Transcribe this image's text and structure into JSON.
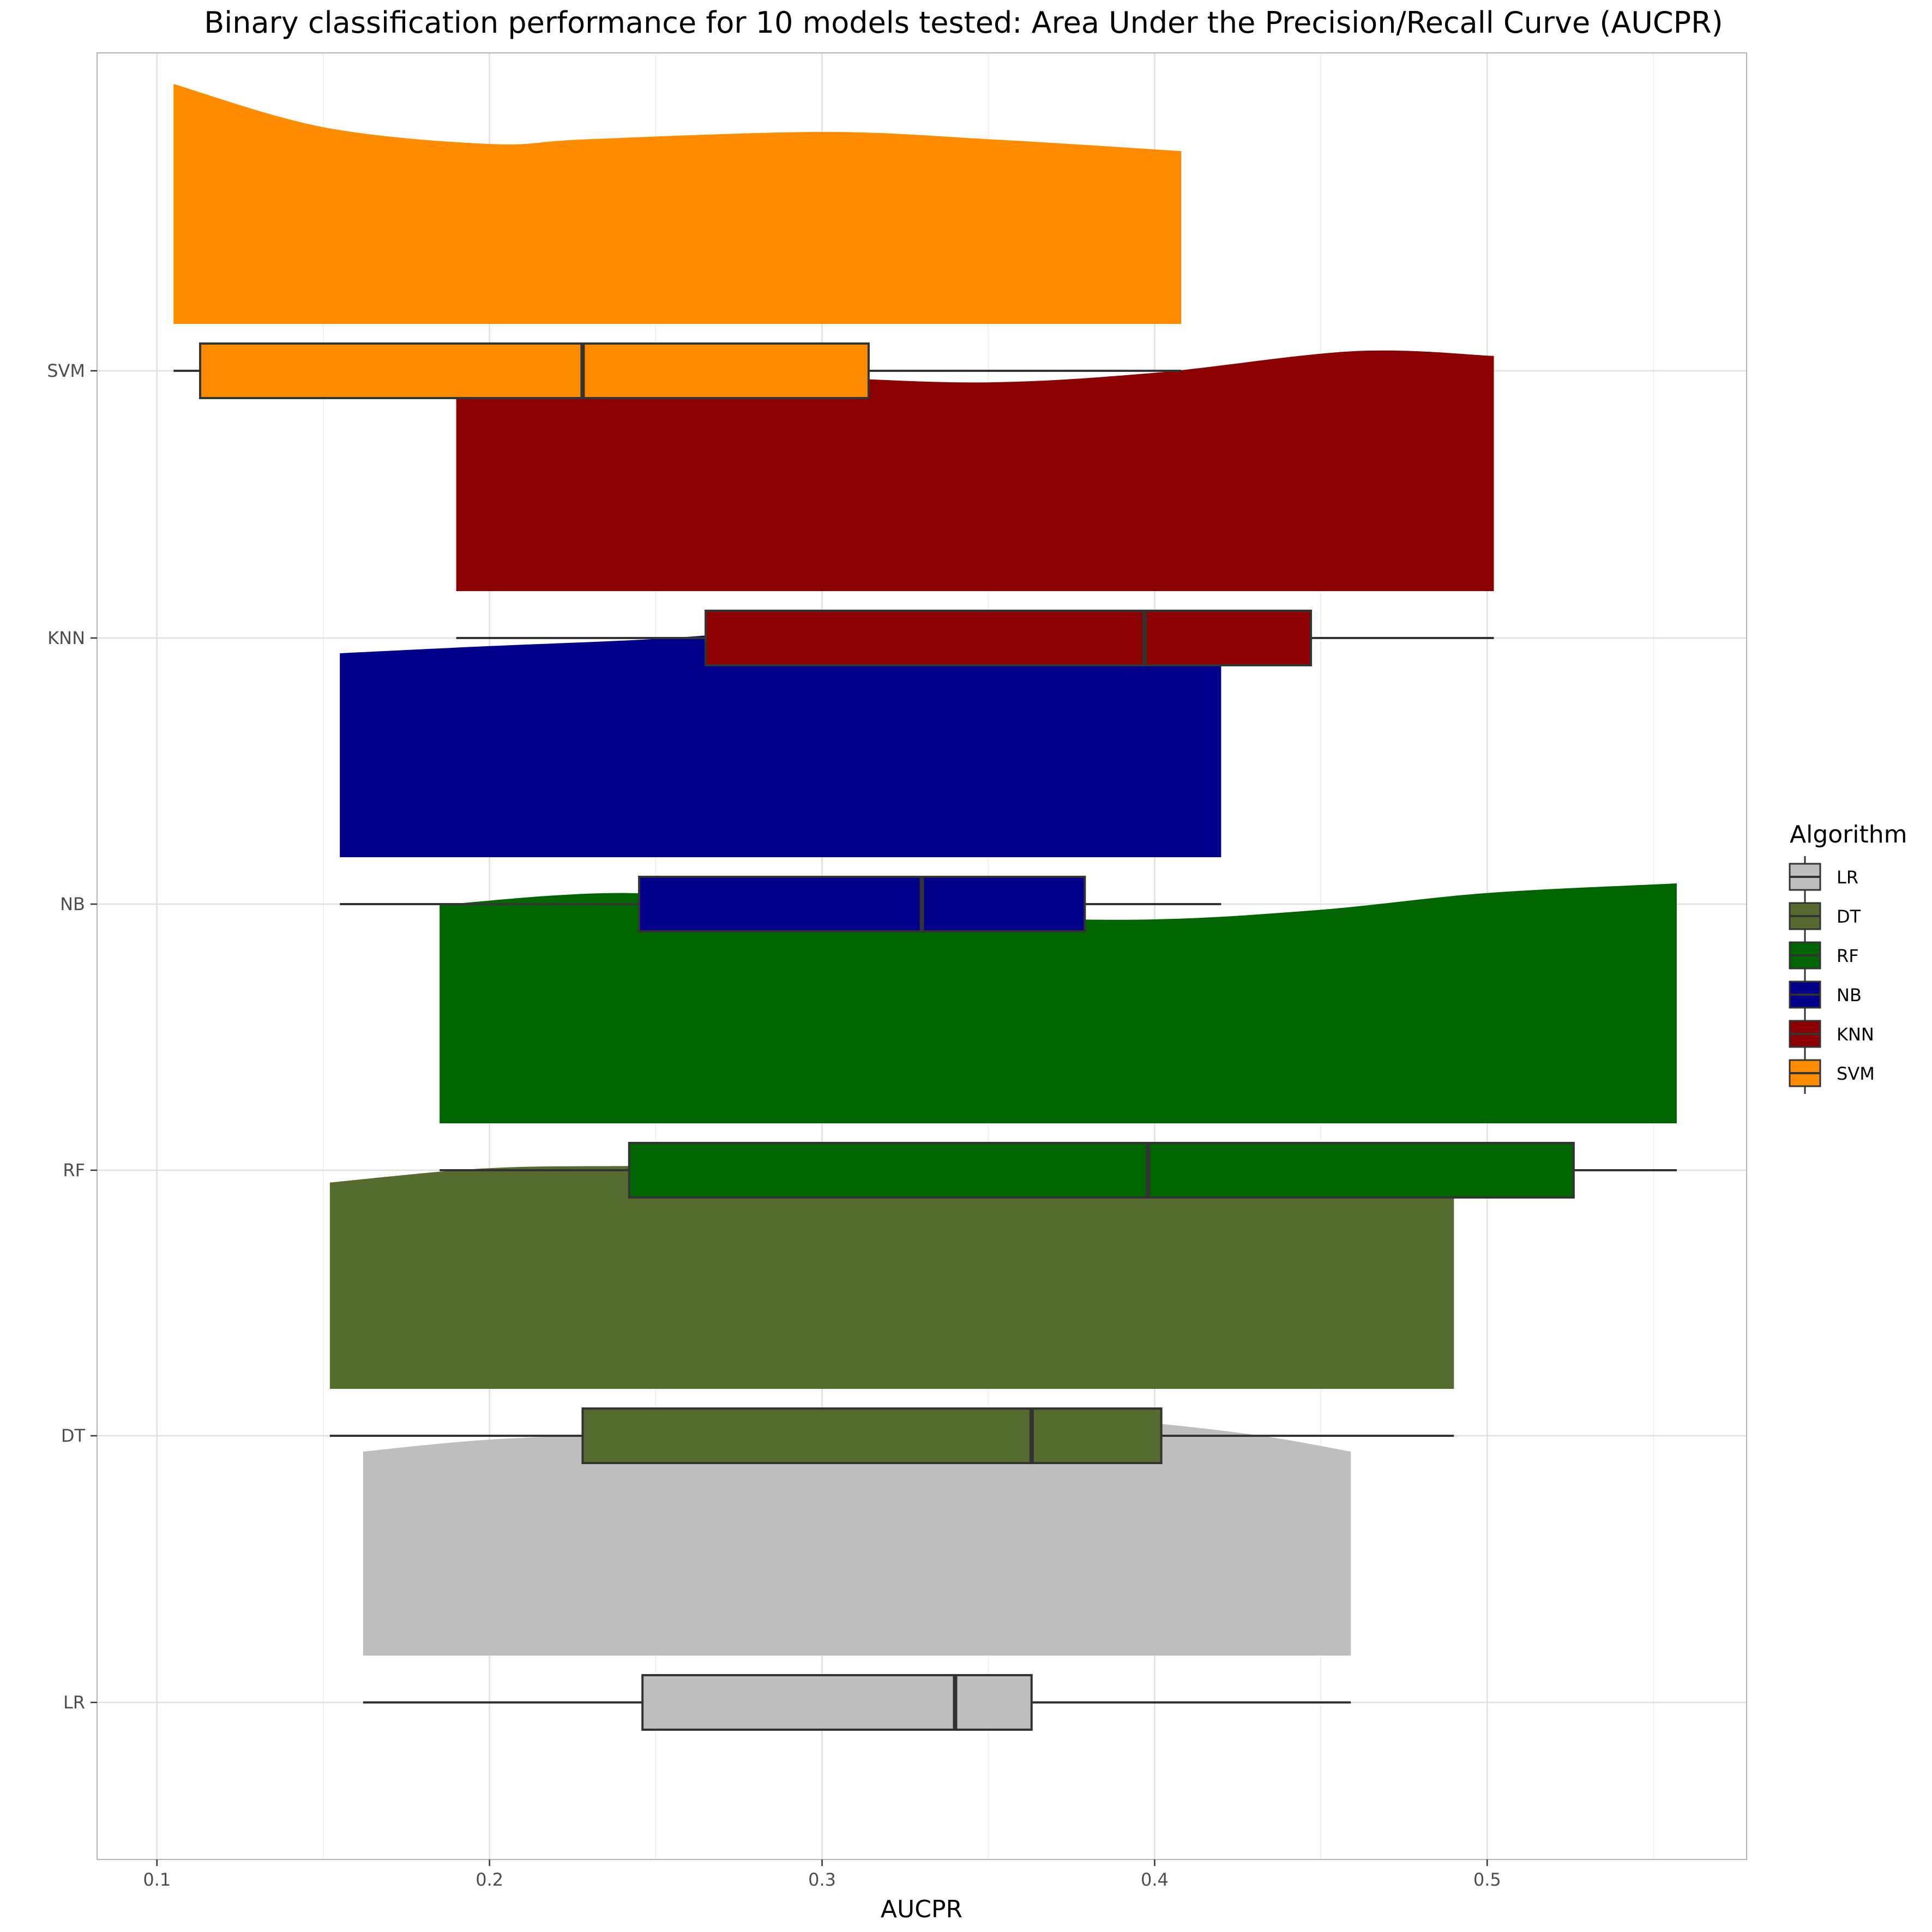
{
  "chart_data": {
    "type": "raincloud",
    "title": "Binary classification performance for 10 models tested: Area Under the Precision/Recall Curve (AUCPR)",
    "xlabel": "AUCPR",
    "ylabel": "",
    "xlim": [
      0.082,
      0.578
    ],
    "x_ticks": [
      0.1,
      0.2,
      0.3,
      0.4,
      0.5
    ],
    "x_tick_labels": [
      "0.1",
      "0.2",
      "0.3",
      "0.4",
      "0.5"
    ],
    "categories": [
      "LR",
      "DT",
      "RF",
      "NB",
      "KNN",
      "SVM"
    ],
    "grid": true,
    "legend": {
      "title": "Algorithm",
      "placement": "right",
      "entries": [
        "LR",
        "DT",
        "RF",
        "NB",
        "KNN",
        "SVM"
      ]
    },
    "series": [
      {
        "name": "LR",
        "color": "#BEBEBE",
        "box": {
          "min": 0.162,
          "q1": 0.246,
          "median": 0.34,
          "q3": 0.363,
          "max": 0.459
        },
        "density": {
          "x": [
            0.162,
            0.2,
            0.25,
            0.3,
            0.33,
            0.355,
            0.39,
            0.43,
            0.459
          ],
          "y": [
            0.85,
            0.9,
            0.93,
            0.97,
            1.0,
            1.0,
            0.98,
            0.92,
            0.85
          ]
        }
      },
      {
        "name": "DT",
        "color": "#556B2F",
        "box": {
          "min": 0.152,
          "q1": 0.228,
          "median": 0.363,
          "q3": 0.402,
          "max": 0.49
        },
        "density": {
          "x": [
            0.152,
            0.2,
            0.25,
            0.3,
            0.35,
            0.39,
            0.43,
            0.47,
            0.49
          ],
          "y": [
            0.86,
            0.92,
            0.93,
            0.94,
            0.99,
            1.0,
            0.97,
            0.9,
            0.86
          ]
        }
      },
      {
        "name": "RF",
        "color": "#006400",
        "box": {
          "min": 0.185,
          "q1": 0.242,
          "median": 0.398,
          "q3": 0.526,
          "max": 0.557
        },
        "density": {
          "x": [
            0.185,
            0.24,
            0.3,
            0.35,
            0.4,
            0.45,
            0.5,
            0.557
          ],
          "y": [
            0.91,
            0.96,
            0.9,
            0.86,
            0.85,
            0.89,
            0.96,
            1.0
          ]
        }
      },
      {
        "name": "NB",
        "color": "#00008B",
        "box": {
          "min": 0.155,
          "q1": 0.245,
          "median": 0.33,
          "q3": 0.379,
          "max": 0.42
        },
        "density": {
          "x": [
            0.155,
            0.2,
            0.25,
            0.3,
            0.35,
            0.395,
            0.42
          ],
          "y": [
            0.85,
            0.88,
            0.91,
            0.96,
            1.0,
            0.99,
            0.93
          ]
        }
      },
      {
        "name": "KNN",
        "color": "#8B0000",
        "box": {
          "min": 0.19,
          "q1": 0.265,
          "median": 0.397,
          "q3": 0.447,
          "max": 0.502
        },
        "density": {
          "x": [
            0.19,
            0.25,
            0.3,
            0.35,
            0.4,
            0.46,
            0.502
          ],
          "y": [
            0.87,
            0.91,
            0.89,
            0.87,
            0.91,
            1.0,
            0.98
          ]
        }
      },
      {
        "name": "SVM",
        "color": "#FF8C00",
        "box": {
          "min": 0.105,
          "q1": 0.113,
          "median": 0.228,
          "q3": 0.314,
          "max": 0.408
        },
        "density": {
          "x": [
            0.105,
            0.15,
            0.2,
            0.23,
            0.3,
            0.35,
            0.408
          ],
          "y": [
            1.0,
            0.82,
            0.75,
            0.77,
            0.8,
            0.77,
            0.72
          ]
        }
      }
    ]
  }
}
